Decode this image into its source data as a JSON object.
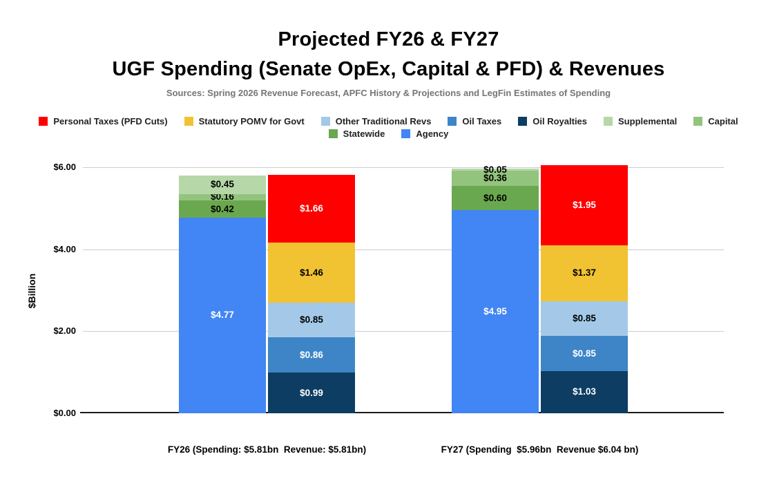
{
  "title": {
    "line1": "Projected FY26 & FY27",
    "line2": "UGF Spending (Senate OpEx, Capital & PFD) & Revenues"
  },
  "subtitle": "Sources: Spring 2026 Revenue Forecast, APFC History & Projections and LegFin Estimates of Spending",
  "legend": {
    "rows": [
      [
        {
          "label": "Personal Taxes (PFD Cuts)",
          "color": "#FF0000"
        },
        {
          "label": "Statutory POMV for Govt",
          "color": "#F1C232"
        },
        {
          "label": "Other Traditional Revs",
          "color": "#A4C9E8"
        },
        {
          "label": "Oil Taxes",
          "color": "#3D85C6"
        },
        {
          "label": "Oil Royalties",
          "color": "#0D3D63"
        },
        {
          "label": "Supplemental",
          "color": "#B6D7A8"
        },
        {
          "label": "Capital",
          "color": "#93C47D"
        }
      ],
      [
        {
          "label": "Statewide",
          "color": "#6AA84F"
        },
        {
          "label": "Agency",
          "color": "#4285F4"
        }
      ]
    ]
  },
  "chart_data": {
    "type": "bar",
    "stacked": true,
    "title": "Projected FY26 & FY27 UGF Spending (Senate OpEx, Capital & PFD) & Revenues",
    "xlabel": "",
    "ylabel": "$Billion",
    "ylim": [
      0,
      6
    ],
    "grid": true,
    "legend_position": "top",
    "yticks": [
      {
        "label": "$0.00",
        "value": 0
      },
      {
        "label": "$2.00",
        "value": 2
      },
      {
        "label": "$4.00",
        "value": 4
      },
      {
        "label": "$6.00",
        "value": 6
      }
    ],
    "series_styles": {
      "Agency": {
        "color": "#4285F4",
        "text": "#FFFFFF"
      },
      "Statewide": {
        "color": "#6AA84F",
        "text": "#000000"
      },
      "Capital": {
        "color": "#93C47D",
        "text": "#000000"
      },
      "Supplemental": {
        "color": "#B6D7A8",
        "text": "#000000"
      },
      "Oil Royalties": {
        "color": "#0D3D63",
        "text": "#FFFFFF"
      },
      "Oil Taxes": {
        "color": "#3D85C6",
        "text": "#FFFFFF"
      },
      "Other Traditional Revs": {
        "color": "#A4C9E8",
        "text": "#000000"
      },
      "Statutory POMV for Govt": {
        "color": "#F1C232",
        "text": "#000000"
      },
      "Personal Taxes (PFD Cuts)": {
        "color": "#FF0000",
        "text": "#FFFFFF"
      }
    },
    "groups": [
      {
        "name": "fy26",
        "label": "FY26 (Spending: $5.81bn  Revenue: $5.81bn)",
        "spending_total": "$5.81bn",
        "revenue_total": "$5.81bn",
        "bars": [
          {
            "name": "spending",
            "segments": [
              {
                "series": "Agency",
                "value": 4.77,
                "label": "$4.77"
              },
              {
                "series": "Statewide",
                "value": 0.42,
                "label": "$0.42"
              },
              {
                "series": "Capital",
                "value": 0.16,
                "label": "$0.16"
              },
              {
                "series": "Supplemental",
                "value": 0.45,
                "label": "$0.45"
              }
            ]
          },
          {
            "name": "revenue",
            "segments": [
              {
                "series": "Oil Royalties",
                "value": 0.99,
                "label": "$0.99"
              },
              {
                "series": "Oil Taxes",
                "value": 0.86,
                "label": "$0.86"
              },
              {
                "series": "Other Traditional Revs",
                "value": 0.85,
                "label": "$0.85"
              },
              {
                "series": "Statutory POMV for Govt",
                "value": 1.46,
                "label": "$1.46"
              },
              {
                "series": "Personal Taxes (PFD Cuts)",
                "value": 1.66,
                "label": "$1.66"
              }
            ]
          }
        ]
      },
      {
        "name": "fy27",
        "label": "FY27 (Spending  $5.96bn  Revenue $6.04 bn)",
        "spending_total": "$5.96bn",
        "revenue_total": "$6.04 bn",
        "bars": [
          {
            "name": "spending",
            "segments": [
              {
                "series": "Agency",
                "value": 4.95,
                "label": "$4.95"
              },
              {
                "series": "Statewide",
                "value": 0.6,
                "label": "$0.60"
              },
              {
                "series": "Capital",
                "value": 0.36,
                "label": "$0.36"
              },
              {
                "series": "Supplemental",
                "value": 0.05,
                "label": "$0.05"
              }
            ]
          },
          {
            "name": "revenue",
            "segments": [
              {
                "series": "Oil Royalties",
                "value": 1.03,
                "label": "$1.03"
              },
              {
                "series": "Oil Taxes",
                "value": 0.85,
                "label": "$0.85"
              },
              {
                "series": "Other Traditional Revs",
                "value": 0.85,
                "label": "$0.85"
              },
              {
                "series": "Statutory POMV for Govt",
                "value": 1.37,
                "label": "$1.37"
              },
              {
                "series": "Personal Taxes (PFD Cuts)",
                "value": 1.95,
                "label": "$1.95"
              }
            ]
          }
        ]
      }
    ]
  }
}
